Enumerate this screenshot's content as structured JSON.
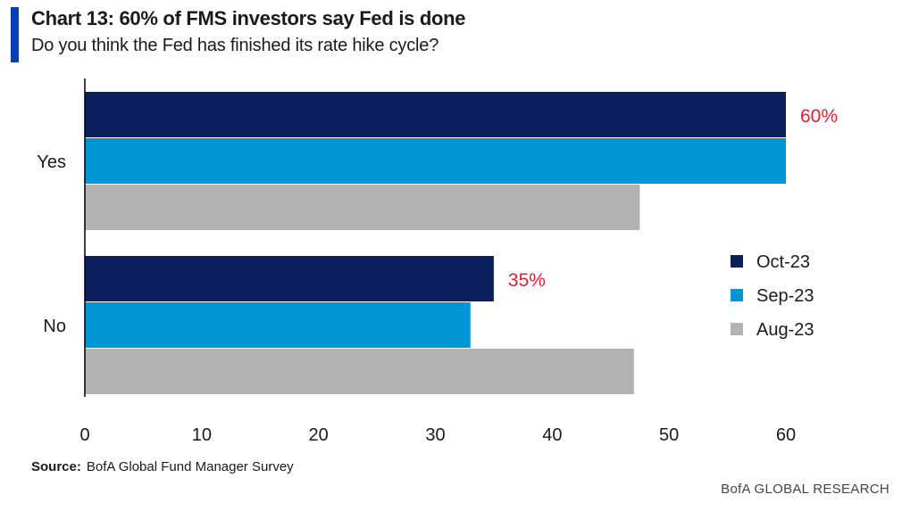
{
  "title": "Chart 13: 60% of FMS investors say Fed is done",
  "subtitle": "Do you think the Fed has finished its rate hike cycle?",
  "source_label": "Source:",
  "source_text": "BofA Global Fund Manager Survey",
  "footer": "BofA GLOBAL RESEARCH",
  "colors": {
    "accent": "#0a3fb0",
    "oct": "#0b1f5c",
    "sep": "#0096d6",
    "aug": "#b3b3b3",
    "highlight": "#e0202e"
  },
  "chart_data": {
    "type": "bar",
    "orientation": "horizontal",
    "categories": [
      "Yes",
      "No"
    ],
    "series": [
      {
        "name": "Oct-23",
        "values": [
          60,
          35
        ]
      },
      {
        "name": "Sep-23",
        "values": [
          60,
          33
        ]
      },
      {
        "name": "Aug-23",
        "values": [
          47.5,
          47
        ]
      }
    ],
    "xlim": [
      0,
      60
    ],
    "xticks": [
      0,
      10,
      20,
      30,
      40,
      50,
      60
    ],
    "grid": false,
    "legend": "right",
    "annotations": [
      {
        "category": "Yes",
        "series": "Oct-23",
        "text": "60%"
      },
      {
        "category": "No",
        "series": "Oct-23",
        "text": "35%"
      }
    ]
  }
}
